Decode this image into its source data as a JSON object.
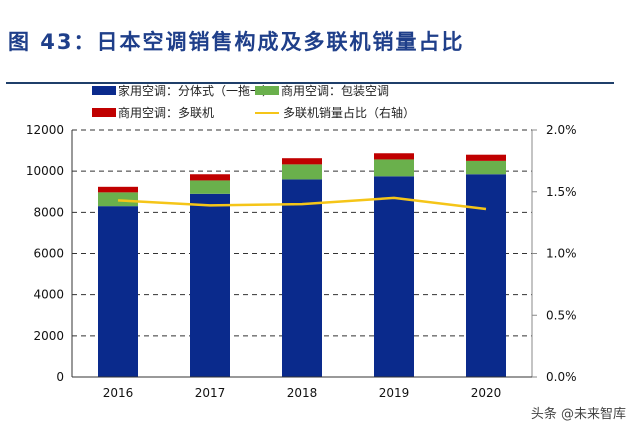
{
  "title": "图 43：日本空调销售构成及多联机销量占比",
  "watermark": "头条 @未来智库",
  "chart_data": {
    "type": "bar",
    "stacked": true,
    "categories": [
      "2016",
      "2017",
      "2018",
      "2019",
      "2020"
    ],
    "series": [
      {
        "name": "家用空调：分体式（一拖一）",
        "color": "#0a2a8c",
        "values": [
          8300,
          8900,
          9600,
          9750,
          9850
        ]
      },
      {
        "name": "商用空调：包装空调",
        "color": "#6ab04c",
        "values": [
          670,
          650,
          730,
          820,
          650
        ]
      },
      {
        "name": "商用空调：多联机",
        "color": "#c00000",
        "values": [
          270,
          300,
          300,
          300,
          300
        ]
      }
    ],
    "line_series": {
      "name": "多联机销量占比（右轴）",
      "color": "#f5c518",
      "axis": "right",
      "values": [
        1.43,
        1.39,
        1.4,
        1.45,
        1.36
      ]
    },
    "ylim": [
      0,
      12000
    ],
    "yticks": [
      "0",
      "2000",
      "4000",
      "6000",
      "8000",
      "10000",
      "12000"
    ],
    "y2lim": [
      0,
      2.0
    ],
    "y2ticks": [
      "0.0%",
      "0.5%",
      "1.0%",
      "1.5%",
      "2.0%"
    ],
    "grid": true,
    "legend": "top"
  }
}
